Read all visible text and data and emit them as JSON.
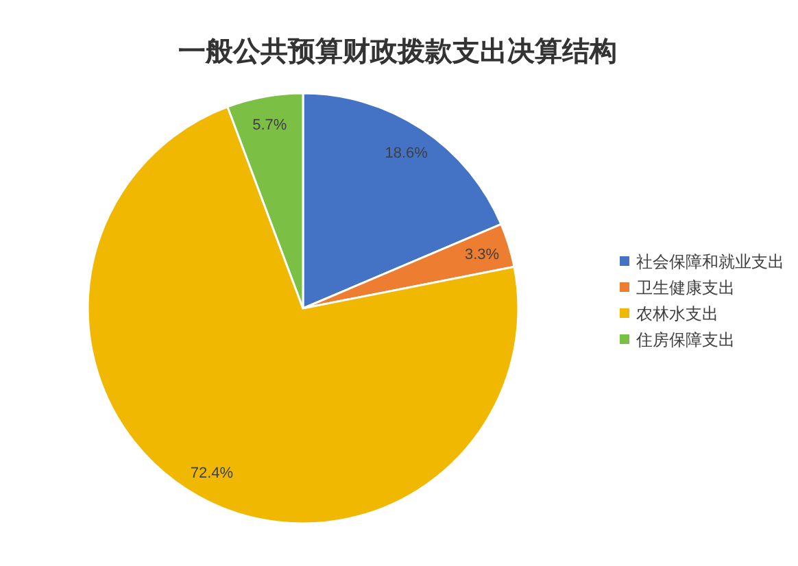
{
  "chart_data": {
    "type": "pie",
    "title": "一般公共预算财政拨款支出决算结构",
    "categories": [
      "社会保障和就业支出",
      "卫生健康支出",
      "农林水支出",
      "住房保障支出"
    ],
    "values": [
      18.6,
      3.3,
      72.4,
      5.7
    ],
    "colors": [
      "#4472c4",
      "#ed7d31",
      "#f0b800",
      "#7bbf44"
    ],
    "value_labels": [
      "18.6%",
      "3.3%",
      "72.4%",
      "5.7%"
    ],
    "legend": "right"
  }
}
